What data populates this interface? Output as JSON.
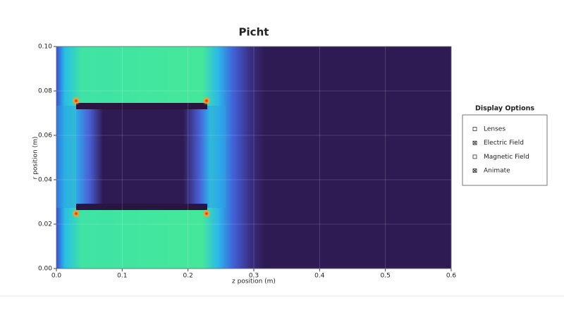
{
  "chart_data": {
    "type": "field",
    "title": "Picht",
    "x_label": "z position (m)",
    "y_label": "r position (m)",
    "xlim": [
      0,
      0.6
    ],
    "ylim": [
      0,
      0.1
    ],
    "xticks": [
      {
        "value": 0,
        "label": "0.0"
      },
      0.1,
      0.2,
      0.3,
      0.4,
      0.5,
      0.6
    ],
    "yticks": [
      {
        "value": 0,
        "label": "0.00"
      },
      0.02,
      0.04,
      0.06,
      0.08,
      {
        "value": 0.1,
        "label": "0.10"
      }
    ],
    "grid": true
  },
  "controls": {
    "title": "Display Options",
    "options": [
      {
        "label": "Lenses",
        "checked": false
      },
      {
        "label": "Electric Field",
        "checked": true
      },
      {
        "label": "Magnetic Field",
        "checked": false
      },
      {
        "label": "Animate",
        "checked": true
      }
    ]
  }
}
